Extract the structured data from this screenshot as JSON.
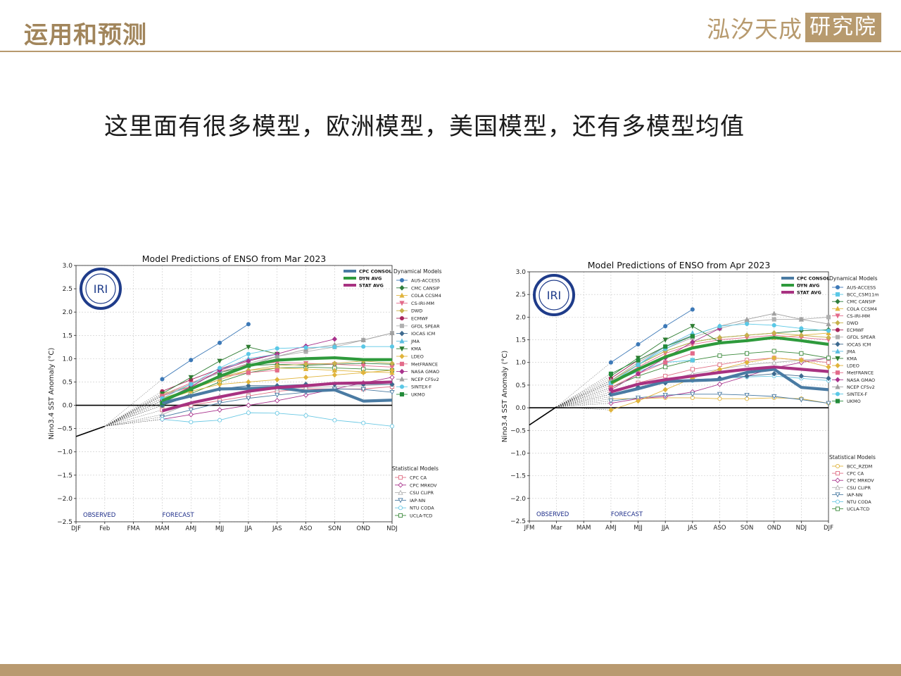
{
  "header": {
    "title": "运用和预测",
    "logo_text": "泓汐天成",
    "logo_box": "研究院"
  },
  "subtitle": "这里面有很多模型，欧洲模型，美国模型，还有多模型均值",
  "colors": {
    "accent": "#b79a6e",
    "cpc_consol": "#4a7ba3",
    "dyn_avg": "#2e9a3c",
    "stat_avg": "#a83281"
  },
  "chart_data": [
    {
      "type": "line",
      "title": "Model Predictions of ENSO from Mar 2023",
      "ylabel": "Nino3.4 SST Anomaly (°C)",
      "xlabel": "",
      "x": [
        "DJF",
        "Feb",
        "FMA",
        "MAM",
        "AMJ",
        "MJJ",
        "JJA",
        "JAS",
        "ASO",
        "SON",
        "OND",
        "NDJ"
      ],
      "ylim": [
        -2.5,
        3.0
      ],
      "yticks": [
        -2.5,
        -2.0,
        -1.5,
        -1.0,
        -0.5,
        0.0,
        0.5,
        1.0,
        1.5,
        2.0,
        2.5,
        3.0
      ],
      "grid": true,
      "observed_label": "OBSERVED",
      "forecast_label": "FORECAST",
      "logo": "IRI",
      "legend_dynamical_title": "Dynamical Models",
      "legend_statistical_title": "Statistical Models",
      "observed": {
        "x": [
          "DJF",
          "Feb"
        ],
        "values": [
          -0.67,
          -0.45
        ]
      },
      "averages": [
        {
          "name": "CPC CONSOL",
          "color": "#4a7ba3",
          "x_start": 3,
          "values": [
            0.05,
            0.2,
            0.35,
            0.36,
            0.38,
            0.3,
            0.33,
            0.09,
            0.11
          ]
        },
        {
          "name": "DYN AVG",
          "color": "#2e9a3c",
          "x_start": 3,
          "values": [
            0.1,
            0.35,
            0.62,
            0.85,
            0.97,
            1.0,
            1.02,
            0.98,
            0.98
          ]
        },
        {
          "name": "STAT AVG",
          "color": "#a83281",
          "x_start": 3,
          "values": [
            -0.12,
            0.05,
            0.18,
            0.3,
            0.38,
            0.42,
            0.47,
            0.48,
            0.5
          ]
        }
      ],
      "dynamical": [
        {
          "name": "AUS-ACCESS",
          "color": "#3d79b7",
          "marker": "o",
          "x_start": 3,
          "values": [
            0.56,
            0.97,
            1.34,
            1.74
          ]
        },
        {
          "name": "CMC CANSIP",
          "color": "#2e7d3c",
          "marker": "D",
          "x_start": 3,
          "values": [
            0.2,
            0.45,
            0.7,
            0.85,
            0.88,
            0.86,
            0.88,
            0.9,
            0.88
          ]
        },
        {
          "name": "COLA CCSM4",
          "color": "#e0b43c",
          "marker": "^",
          "x_start": 3,
          "values": [
            0.15,
            0.35,
            0.55,
            0.75,
            0.8,
            0.78,
            0.75,
            0.72,
            0.7
          ]
        },
        {
          "name": "CS-IRI-MM",
          "color": "#e36b8a",
          "marker": "v",
          "x_start": 3,
          "values": [
            0.22,
            0.48,
            0.72,
            0.88,
            0.92,
            0.9,
            0.88,
            0.85,
            0.82
          ]
        },
        {
          "name": "DWD",
          "color": "#c8b14c",
          "marker": "D",
          "x_start": 3,
          "values": [
            0.25,
            0.4,
            0.6,
            0.75,
            0.85,
            0.88,
            0.9,
            0.95,
            0.9
          ]
        },
        {
          "name": "ECMWF",
          "color": "#a8265c",
          "marker": "o",
          "x_start": 3,
          "values": [
            0.3,
            0.55,
            0.78,
            0.97,
            1.1
          ]
        },
        {
          "name": "GFDL SPEAR",
          "color": "#b0b0b0",
          "marker": "s",
          "x_start": 3,
          "values": [
            0.2,
            0.45,
            0.7,
            0.9,
            1.05,
            1.15,
            1.25,
            1.4,
            1.55
          ]
        },
        {
          "name": "IOCAS ICM",
          "color": "#3e6a8f",
          "marker": "D",
          "x_start": 3,
          "values": [
            0.0,
            0.2,
            0.35,
            0.42,
            0.42,
            0.45,
            0.45,
            0.45,
            0.45
          ]
        },
        {
          "name": "JMA",
          "color": "#5bbde0",
          "marker": "^",
          "x_start": 3,
          "values": [
            0.1,
            0.4,
            0.75,
            1.0,
            1.1
          ]
        },
        {
          "name": "KMA",
          "color": "#2e7d32",
          "marker": "v",
          "x_start": 3,
          "values": [
            0.25,
            0.6,
            0.95,
            1.25,
            1.1
          ]
        },
        {
          "name": "LDEO",
          "color": "#e0b43c",
          "marker": "D",
          "x_start": 3,
          "values": [
            0.1,
            0.3,
            0.45,
            0.5,
            0.55,
            0.6,
            0.65,
            0.7,
            0.75
          ]
        },
        {
          "name": "MetFRANCE",
          "color": "#e36b8a",
          "marker": "s",
          "x_start": 3,
          "values": [
            0.2,
            0.4,
            0.6,
            0.7,
            0.75
          ]
        },
        {
          "name": "NASA GMAO",
          "color": "#a8328c",
          "marker": "D",
          "x_start": 3,
          "values": [
            0.1,
            0.4,
            0.75,
            0.95,
            1.1,
            1.27,
            1.42
          ]
        },
        {
          "name": "NCEP CFSv2",
          "color": "#a0a0a0",
          "marker": "^",
          "x_start": 3,
          "values": [
            0.1,
            0.35,
            0.6,
            0.85,
            1.05,
            1.2,
            1.3,
            1.4,
            1.55
          ]
        },
        {
          "name": "SINTEX-F",
          "color": "#5bc8e6",
          "marker": "o",
          "x_start": 3,
          "values": [
            0.15,
            0.45,
            0.8,
            1.1,
            1.22,
            1.24,
            1.25,
            1.26,
            1.26
          ]
        },
        {
          "name": "UKMO",
          "color": "#238b3a",
          "marker": "s",
          "x_start": 3,
          "values": [
            0.05,
            0.35,
            0.65,
            0.85
          ]
        }
      ],
      "statistical": [
        {
          "name": "CPC CA",
          "color": "#e06e84",
          "marker": "s",
          "x_start": 3,
          "values": [
            -0.1,
            0.0,
            0.1,
            0.2,
            0.3,
            0.35,
            0.35,
            0.35,
            0.4
          ]
        },
        {
          "name": "CPC MRKOV",
          "color": "#a8328c",
          "marker": "D",
          "x_start": 3,
          "values": [
            -0.3,
            -0.2,
            -0.1,
            0.0,
            0.1,
            0.22,
            0.35,
            0.48,
            0.6
          ]
        },
        {
          "name": "CSU CLIPR",
          "color": "#b0b0b0",
          "marker": "^",
          "x_start": 3,
          "values": [
            -0.2,
            0.05,
            0.2,
            0.3,
            0.35,
            0.38,
            0.4,
            0.42,
            0.45
          ]
        },
        {
          "name": "IAP-NN",
          "color": "#4a7ba3",
          "marker": "v",
          "x_start": 3,
          "values": [
            -0.25,
            -0.1,
            0.05,
            0.15,
            0.22,
            0.28,
            0.35,
            0.34,
            0.28
          ]
        },
        {
          "name": "NTU CODA",
          "color": "#6cc9e4",
          "marker": "o",
          "x_start": 3,
          "values": [
            -0.3,
            -0.36,
            -0.32,
            -0.16,
            -0.17,
            -0.22,
            -0.32,
            -0.38,
            -0.45
          ]
        },
        {
          "name": "UCLA-TCD",
          "color": "#3c8a3c",
          "marker": "s",
          "x_start": 3,
          "values": [
            0.0,
            0.25,
            0.5,
            0.7,
            0.8,
            0.82,
            0.8,
            0.78,
            0.75
          ]
        }
      ]
    },
    {
      "type": "line",
      "title": "Model Predictions of ENSO from Apr 2023",
      "ylabel": "Nino3.4 SST Anomaly (°C)",
      "xlabel": "",
      "x": [
        "JFM",
        "Mar",
        "MAM",
        "AMJ",
        "MJJ",
        "JJA",
        "JAS",
        "ASO",
        "SON",
        "OND",
        "NDJ",
        "DJF"
      ],
      "ylim": [
        -2.5,
        3.0
      ],
      "yticks": [
        -2.5,
        -2.0,
        -1.5,
        -1.0,
        -0.5,
        0.0,
        0.5,
        1.0,
        1.5,
        2.0,
        2.5,
        3.0
      ],
      "grid": true,
      "observed_label": "OBSERVED",
      "forecast_label": "FORECAST",
      "logo": "IRI",
      "legend_dynamical_title": "Dynamical Models",
      "legend_statistical_title": "Statistical Models",
      "observed": {
        "x": [
          "JFM",
          "Mar"
        ],
        "values": [
          -0.38,
          0.02
        ]
      },
      "averages": [
        {
          "name": "CPC CONSOL",
          "color": "#4a7ba3",
          "x_start": 3,
          "values": [
            0.28,
            0.42,
            0.58,
            0.6,
            0.62,
            0.78,
            0.85,
            0.45,
            0.4
          ]
        },
        {
          "name": "DYN AVG",
          "color": "#2e9a3c",
          "x_start": 3,
          "values": [
            0.55,
            0.85,
            1.12,
            1.32,
            1.43,
            1.48,
            1.55,
            1.48,
            1.4
          ]
        },
        {
          "name": "STAT AVG",
          "color": "#a83281",
          "x_start": 3,
          "values": [
            0.35,
            0.52,
            0.62,
            0.7,
            0.78,
            0.85,
            0.9,
            0.85,
            0.8
          ]
        }
      ],
      "dynamical": [
        {
          "name": "AUS-ACCESS",
          "color": "#3d79b7",
          "marker": "o",
          "x_start": 3,
          "values": [
            1.0,
            1.4,
            1.8,
            2.17
          ]
        },
        {
          "name": "BCC_CSM11m",
          "color": "#5bc8e6",
          "marker": "s",
          "x_start": 3,
          "values": [
            0.55,
            0.8,
            1.0,
            1.05
          ]
        },
        {
          "name": "CMC CANSIP",
          "color": "#2e7d3c",
          "marker": "D",
          "x_start": 3,
          "values": [
            0.6,
            0.95,
            1.25,
            1.45,
            1.55,
            1.6,
            1.65,
            1.7,
            1.72
          ]
        },
        {
          "name": "COLA CCSM4",
          "color": "#e0b43c",
          "marker": "^",
          "x_start": 3,
          "values": [
            0.5,
            0.85,
            1.15,
            1.35,
            1.45,
            1.5,
            1.55,
            1.6,
            1.65
          ]
        },
        {
          "name": "CS-IRI-MM",
          "color": "#e36b8a",
          "marker": "v",
          "x_start": 3,
          "values": [
            0.55,
            0.9,
            1.2,
            1.4,
            1.5,
            1.55,
            1.6,
            1.55,
            1.5
          ]
        },
        {
          "name": "DWD",
          "color": "#c8b14c",
          "marker": "D",
          "x_start": 3,
          "values": [
            0.6,
            0.95,
            1.25,
            1.45,
            1.55,
            1.6,
            1.65,
            1.6,
            1.55
          ]
        },
        {
          "name": "ECMWF",
          "color": "#a8265c",
          "marker": "o",
          "x_start": 3,
          "values": [
            0.65,
            1.05,
            1.35,
            1.6
          ]
        },
        {
          "name": "GFDL SPEAR",
          "color": "#b0b0b0",
          "marker": "s",
          "x_start": 3,
          "values": [
            0.55,
            0.95,
            1.3,
            1.55,
            1.75,
            1.9,
            1.95,
            1.95,
            2.0
          ]
        },
        {
          "name": "IOCAS ICM",
          "color": "#3e6a8f",
          "marker": "D",
          "x_start": 3,
          "values": [
            0.3,
            0.45,
            0.55,
            0.62,
            0.65,
            0.7,
            0.75,
            0.7,
            0.65
          ]
        },
        {
          "name": "JMA",
          "color": "#5bbde0",
          "marker": "^",
          "x_start": 3,
          "values": [
            0.55,
            0.95,
            1.35,
            1.65
          ]
        },
        {
          "name": "KMA",
          "color": "#2e7d32",
          "marker": "v",
          "x_start": 3,
          "values": [
            0.7,
            1.1,
            1.5,
            1.8,
            1.45
          ]
        },
        {
          "name": "LDEO",
          "color": "#e0b43c",
          "marker": "D",
          "x_start": 3,
          "values": [
            -0.05,
            0.15,
            0.4,
            0.65,
            0.85,
            1.0,
            1.1,
            1.05,
            0.9
          ]
        },
        {
          "name": "MetFRANCE",
          "color": "#e36b8a",
          "marker": "s",
          "x_start": 3,
          "values": [
            0.45,
            0.75,
            1.0,
            1.2
          ]
        },
        {
          "name": "NASA GMAO",
          "color": "#a8328c",
          "marker": "D",
          "x_start": 3,
          "values": [
            0.4,
            0.75,
            1.1,
            1.45,
            1.75
          ]
        },
        {
          "name": "NCEP CFSv2",
          "color": "#a0a0a0",
          "marker": "^",
          "x_start": 3,
          "values": [
            0.6,
            1.0,
            1.35,
            1.6,
            1.8,
            1.95,
            2.08,
            1.95,
            1.85
          ]
        },
        {
          "name": "SINTEX-F",
          "color": "#5bc8e6",
          "marker": "o",
          "x_start": 3,
          "values": [
            0.55,
            0.95,
            1.3,
            1.6,
            1.8,
            1.85,
            1.82,
            1.75,
            1.7
          ]
        },
        {
          "name": "UKMO",
          "color": "#238b3a",
          "marker": "s",
          "x_start": 3,
          "values": [
            0.75,
            1.05,
            1.35,
            1.58
          ]
        }
      ],
      "statistical": [
        {
          "name": "BCC_RZDM",
          "color": "#e0b43c",
          "marker": "o",
          "x_start": 3,
          "values": [
            0.2,
            0.2,
            0.22,
            0.22,
            0.2,
            0.2,
            0.22,
            0.2,
            0.1
          ]
        },
        {
          "name": "CPC CA",
          "color": "#e06e84",
          "marker": "s",
          "x_start": 3,
          "values": [
            0.35,
            0.55,
            0.7,
            0.85,
            0.95,
            1.05,
            1.1,
            1.05,
            1.0
          ]
        },
        {
          "name": "CPC MRKOV",
          "color": "#a8328c",
          "marker": "D",
          "x_start": 3,
          "values": [
            0.1,
            0.2,
            0.25,
            0.35,
            0.52,
            0.7,
            0.88,
            1.0,
            1.1
          ]
        },
        {
          "name": "CSU CLIPR",
          "color": "#b0b0b0",
          "marker": "^",
          "x_start": 3,
          "values": [
            0.25,
            0.45,
            0.6,
            0.75,
            0.85,
            0.95,
            1.0,
            1.05,
            1.1
          ]
        },
        {
          "name": "IAP-NN",
          "color": "#4a7ba3",
          "marker": "v",
          "x_start": 3,
          "values": [
            0.15,
            0.22,
            0.28,
            0.3,
            0.3,
            0.28,
            0.25,
            0.18,
            0.1
          ]
        },
        {
          "name": "NTU CODA",
          "color": "#6cc9e4",
          "marker": "o",
          "x_start": 3,
          "values": [
            0.3,
            0.45,
            0.55,
            0.6,
            0.65,
            0.68,
            0.7,
            0.65,
            0.6
          ]
        },
        {
          "name": "UCLA-TCD",
          "color": "#3c8a3c",
          "marker": "s",
          "x_start": 3,
          "values": [
            0.45,
            0.7,
            0.9,
            1.05,
            1.15,
            1.2,
            1.25,
            1.2,
            1.1
          ]
        }
      ]
    }
  ]
}
